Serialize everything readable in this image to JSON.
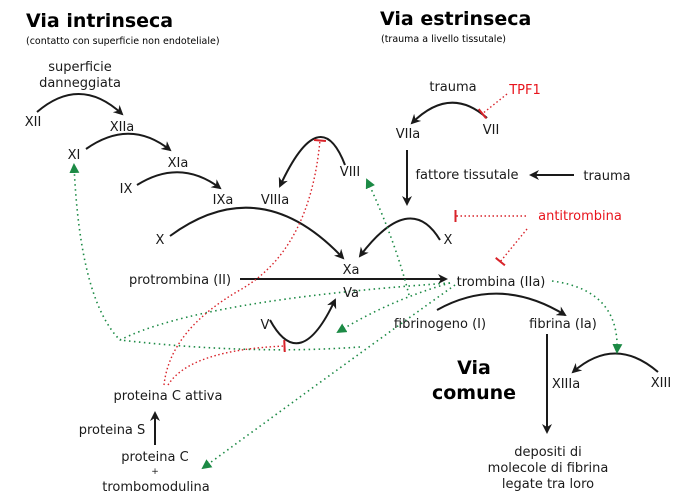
{
  "headings": {
    "intrinsic": "Via intrinseca",
    "intrinsic_sub": "(contatto con superficie non endoteliale)",
    "extrinsic": "Via estrinseca",
    "extrinsic_sub": "(trauma a livello tissutale)",
    "common_1": "Via",
    "common_2": "comune"
  },
  "nodes": {
    "surface_1": "superficie",
    "surface_2": "danneggiata",
    "XII": "XII",
    "XIIa": "XIIa",
    "XI": "XI",
    "XIa": "XIa",
    "IX": "IX",
    "IXa": "IXa",
    "VIIIa": "VIIIa",
    "VIII": "VIII",
    "X_left": "X",
    "Xa": "Xa",
    "prothrombin": "protrombina (II)",
    "thrombin": "trombina (IIa)",
    "Va": "Va",
    "V": "V",
    "fibrinogen": "fibrinogeno (I)",
    "fibrin": "fibrina (Ia)",
    "XIIIa": "XIIIa",
    "XIII": "XIII",
    "deposits_1": "depositi di",
    "deposits_2": "molecole di fibrina",
    "deposits_3": "legate tra loro",
    "protein_c_active": "proteina C attiva",
    "protein_s": "proteina S",
    "protein_c": "proteina C",
    "plus": "+",
    "thrombomodulin": "trombomodulina",
    "trauma_top": "trauma",
    "tpf1": "TPF1",
    "VIIa": "VIIa",
    "VII": "VII",
    "tissue_factor": "fattore tissutale",
    "trauma_right": "trauma",
    "antithrombin": "antitrombina",
    "X_right": "X"
  },
  "colors": {
    "activation": "#1a1a1a",
    "positive_feedback": "#1c8a45",
    "inhibition": "#e8141c"
  }
}
